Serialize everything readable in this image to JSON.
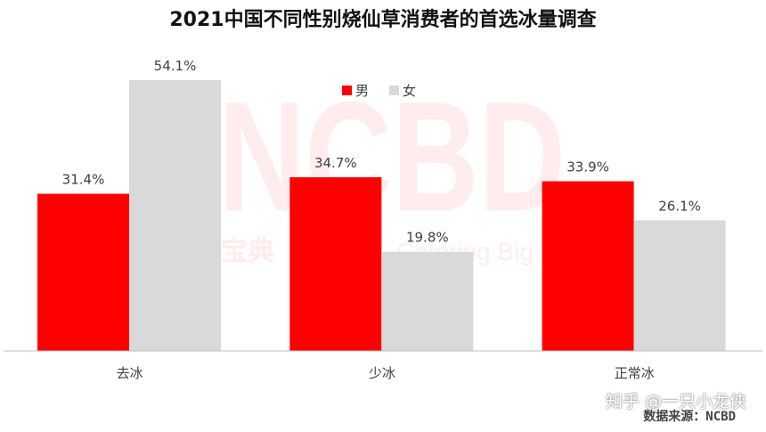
{
  "chart_data": {
    "type": "bar",
    "title": "2021中国不同性别烧仙草消费者的首选冰量调查",
    "categories": [
      "去冰",
      "少冰",
      "正常冰"
    ],
    "series": [
      {
        "name": "男",
        "values": [
          31.4,
          34.7,
          33.9
        ],
        "labels": [
          "31.4%",
          "34.7%",
          "33.9%"
        ],
        "color": "#ff0000"
      },
      {
        "name": "女",
        "values": [
          54.1,
          19.8,
          26.1
        ],
        "labels": [
          "54.1%",
          "19.8%",
          "26.1%"
        ],
        "color": "#d9d9d9"
      }
    ],
    "ylim": [
      0,
      54.1
    ],
    "grid": false,
    "legend_position": "top-center",
    "xlabel": "",
    "ylabel": ""
  },
  "watermark": {
    "logo": "NCBD",
    "cn_text": "宝典",
    "en_text": "Catering Big Data",
    "color": "#ff0000"
  },
  "source_note": "数据来源：NCBD",
  "platform_mark": "知乎 @一只小龙侠"
}
